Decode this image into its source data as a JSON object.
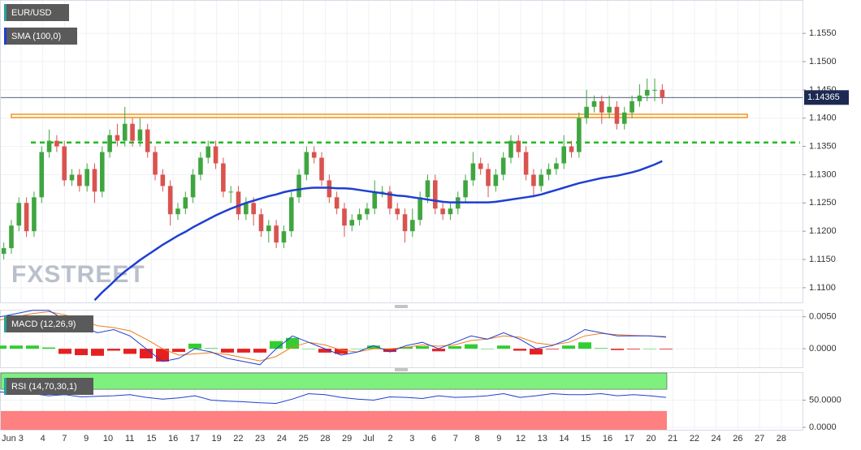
{
  "time_axis": [
    "Jun 3",
    "4",
    "7",
    "9",
    "10",
    "11",
    "15",
    "16",
    "17",
    "19",
    "22",
    "23",
    "24",
    "25",
    "28",
    "29",
    "Jul",
    "2",
    "3",
    "6",
    "7",
    "8",
    "9",
    "12",
    "13",
    "14",
    "15",
    "16",
    "17",
    "20",
    "21",
    "22",
    "24",
    "26",
    "27",
    "28"
  ],
  "chart_data": [
    {
      "type": "candlestick",
      "title": "EUR/USD",
      "watermark": "FXSTREET",
      "up_color": "#3fa63f",
      "down_color": "#d9534f",
      "open": [
        1.116,
        1.117,
        1.121,
        1.125,
        1.12,
        1.126,
        1.134,
        1.136,
        1.135,
        1.129,
        1.13,
        1.128,
        1.131,
        1.127,
        1.134,
        1.137,
        1.136,
        1.139,
        1.136,
        1.138,
        1.134,
        1.13,
        1.128,
        1.123,
        1.124,
        1.126,
        1.13,
        1.133,
        1.135,
        1.132,
        1.127,
        1.127,
        1.123,
        1.125,
        1.123,
        1.12,
        1.121,
        1.118,
        1.12,
        1.126,
        1.13,
        1.134,
        1.133,
        1.129,
        1.126,
        1.124,
        1.121,
        1.122,
        1.123,
        1.124,
        1.127,
        1.127,
        1.124,
        1.123,
        1.12,
        1.122,
        1.126,
        1.129,
        1.124,
        1.123,
        1.124,
        1.126,
        1.129,
        1.132,
        1.131,
        1.128,
        1.13,
        1.133,
        1.136,
        1.134,
        1.13,
        1.128,
        1.13,
        1.131,
        1.132,
        1.135,
        1.134,
        1.14,
        1.142,
        1.143,
        1.141,
        1.142,
        1.139,
        1.141,
        1.143,
        1.144,
        1.145,
        1.145
      ],
      "high": [
        1.118,
        1.122,
        1.126,
        1.126,
        1.127,
        1.135,
        1.138,
        1.137,
        1.136,
        1.131,
        1.131,
        1.132,
        1.132,
        1.135,
        1.138,
        1.139,
        1.142,
        1.14,
        1.14,
        1.139,
        1.135,
        1.131,
        1.129,
        1.125,
        1.127,
        1.131,
        1.134,
        1.136,
        1.136,
        1.133,
        1.128,
        1.128,
        1.126,
        1.126,
        1.124,
        1.122,
        1.122,
        1.121,
        1.127,
        1.131,
        1.135,
        1.135,
        1.134,
        1.13,
        1.127,
        1.125,
        1.123,
        1.124,
        1.125,
        1.129,
        1.128,
        1.128,
        1.125,
        1.124,
        1.124,
        1.127,
        1.13,
        1.13,
        1.125,
        1.125,
        1.127,
        1.13,
        1.134,
        1.133,
        1.132,
        1.131,
        1.134,
        1.137,
        1.137,
        1.135,
        1.131,
        1.131,
        1.132,
        1.133,
        1.137,
        1.136,
        1.141,
        1.145,
        1.144,
        1.144,
        1.144,
        1.143,
        1.142,
        1.144,
        1.146,
        1.147,
        1.147,
        1.146
      ],
      "low": [
        1.115,
        1.116,
        1.12,
        1.119,
        1.119,
        1.125,
        1.133,
        1.134,
        1.128,
        1.128,
        1.127,
        1.127,
        1.125,
        1.126,
        1.133,
        1.135,
        1.135,
        1.135,
        1.135,
        1.133,
        1.129,
        1.127,
        1.121,
        1.122,
        1.123,
        1.125,
        1.129,
        1.132,
        1.131,
        1.126,
        1.125,
        1.122,
        1.122,
        1.121,
        1.119,
        1.118,
        1.117,
        1.117,
        1.119,
        1.125,
        1.129,
        1.132,
        1.128,
        1.125,
        1.123,
        1.119,
        1.12,
        1.121,
        1.122,
        1.123,
        1.126,
        1.123,
        1.122,
        1.118,
        1.119,
        1.121,
        1.125,
        1.123,
        1.122,
        1.122,
        1.123,
        1.125,
        1.128,
        1.13,
        1.126,
        1.127,
        1.129,
        1.132,
        1.133,
        1.129,
        1.126,
        1.127,
        1.129,
        1.13,
        1.131,
        1.133,
        1.133,
        1.139,
        1.141,
        1.139,
        1.14,
        1.138,
        1.138,
        1.14,
        1.142,
        1.143,
        1.143,
        1.1425
      ],
      "close": [
        1.117,
        1.121,
        1.125,
        1.12,
        1.126,
        1.134,
        1.136,
        1.135,
        1.129,
        1.13,
        1.128,
        1.131,
        1.127,
        1.134,
        1.137,
        1.136,
        1.139,
        1.136,
        1.138,
        1.134,
        1.13,
        1.128,
        1.123,
        1.124,
        1.126,
        1.13,
        1.133,
        1.135,
        1.132,
        1.127,
        1.127,
        1.123,
        1.125,
        1.123,
        1.12,
        1.121,
        1.118,
        1.12,
        1.126,
        1.13,
        1.134,
        1.133,
        1.129,
        1.126,
        1.124,
        1.121,
        1.122,
        1.123,
        1.124,
        1.127,
        1.127,
        1.124,
        1.123,
        1.12,
        1.122,
        1.126,
        1.129,
        1.124,
        1.123,
        1.124,
        1.126,
        1.129,
        1.132,
        1.131,
        1.128,
        1.13,
        1.133,
        1.136,
        1.134,
        1.13,
        1.128,
        1.13,
        1.131,
        1.132,
        1.135,
        1.134,
        1.14,
        1.142,
        1.143,
        1.141,
        1.142,
        1.139,
        1.141,
        1.143,
        1.144,
        1.145,
        1.145,
        1.1437
      ],
      "series": [
        {
          "name": "SMA (100,0)",
          "color": "#1f3fd1",
          "values": [
            null,
            null,
            null,
            null,
            null,
            null,
            null,
            null,
            null,
            null,
            null,
            null,
            1.1078,
            1.1092,
            1.1104,
            1.1117,
            1.1129,
            1.1139,
            1.1149,
            1.1158,
            1.1167,
            1.1176,
            1.1184,
            1.1192,
            1.1199,
            1.1207,
            1.1214,
            1.1221,
            1.1228,
            1.1234,
            1.124,
            1.1245,
            1.125,
            1.1254,
            1.1258,
            1.1262,
            1.1265,
            1.1269,
            1.1272,
            1.1274,
            1.1276,
            1.1277,
            1.1277,
            1.1277,
            1.1276,
            1.1276,
            1.1275,
            1.1273,
            1.1271,
            1.1269,
            1.1267,
            1.1265,
            1.1263,
            1.1262,
            1.126,
            1.1258,
            1.1256,
            1.1254,
            1.1252,
            1.1251,
            1.1251,
            1.1251,
            1.1251,
            1.1251,
            1.1251,
            1.1252,
            1.1254,
            1.1256,
            1.1258,
            1.126,
            1.1262,
            1.1265,
            1.1269,
            1.1273,
            1.1277,
            1.1281,
            1.1285,
            1.1288,
            1.1291,
            1.1294,
            1.1296,
            1.1298,
            1.1301,
            1.1304,
            1.1308,
            1.1313,
            1.1318,
            1.1324
          ]
        }
      ],
      "levels": [
        {
          "value": 1.1404,
          "color": "#f7931a",
          "style": "solid"
        },
        {
          "value": 1.1357,
          "color": "#22bb22",
          "style": "dotted"
        }
      ],
      "last_price": 1.14365,
      "last_price_color": "#1c2a52",
      "ylim": [
        1.1074,
        1.1609
      ],
      "yticks": [
        {
          "value": 1.11,
          "label": "1.1100"
        },
        {
          "value": 1.115,
          "label": "1.1150"
        },
        {
          "value": 1.12,
          "label": "1.1200"
        },
        {
          "value": 1.125,
          "label": "1.1250"
        },
        {
          "value": 1.13,
          "label": "1.1300"
        },
        {
          "value": 1.135,
          "label": "1.1350"
        },
        {
          "value": 1.14,
          "label": "1.1400"
        },
        {
          "value": 1.145,
          "label": "1.1450"
        },
        {
          "value": 1.15,
          "label": "1.1500"
        },
        {
          "value": 1.155,
          "label": "1.1550"
        }
      ],
      "grid": true
    },
    {
      "type": "macd",
      "title": "MACD (12,26,9)",
      "macd": {
        "color": "#1f3fd1",
        "values": [
          0.005,
          0.0055,
          0.006,
          0.006,
          0.0045,
          0.0035,
          0.0025,
          0.003,
          0.002,
          0,
          -0.002,
          -0.0015,
          0,
          -0.0005,
          -0.0015,
          -0.002,
          -0.0025,
          0,
          0.002,
          0.001,
          0,
          -0.001,
          -0.0005,
          0.0005,
          -0.0005,
          0.0005,
          0.001,
          0,
          0.001,
          0.002,
          0.0015,
          0.0025,
          0.0015,
          0,
          0.0005,
          0.0015,
          0.003,
          0.0025,
          0.002,
          0.002,
          0.002,
          0.0018
        ]
      },
      "signal": {
        "color": "#f07d1a",
        "values": [
          0.0045,
          0.005,
          0.0055,
          0.0058,
          0.0053,
          0.0045,
          0.0036,
          0.0033,
          0.0028,
          0.0015,
          0,
          -0.001,
          -0.0008,
          -0.0006,
          -0.0009,
          -0.0014,
          -0.0019,
          -0.0012,
          0.0003,
          0.001,
          0.0006,
          -0.0002,
          -0.0005,
          0,
          0,
          0.0002,
          0.0006,
          0.0004,
          0.0006,
          0.0013,
          0.0015,
          0.002,
          0.0018,
          0.0009,
          0.0006,
          0.001,
          0.002,
          0.0024,
          0.0022,
          0.0021,
          0.002,
          0.0019
        ]
      },
      "histogram": {
        "up_color": "#32cd32",
        "down_color": "#e52020",
        "values": [
          0.0005,
          0.0005,
          0.0005,
          0.0002,
          -0.0008,
          -0.001,
          -0.0011,
          -0.0003,
          -0.0008,
          -0.0015,
          -0.002,
          -0.0005,
          0.0008,
          0.0001,
          -0.0006,
          -0.0006,
          -0.0006,
          0.0012,
          0.0017,
          0,
          -0.0006,
          -0.0008,
          0,
          0.0005,
          -0.0005,
          0.0003,
          0.0004,
          -0.0004,
          0.0004,
          0.0007,
          0,
          0.0005,
          -0.0003,
          -0.0009,
          -0.0001,
          0.0005,
          0.001,
          0.0001,
          -0.0002,
          -0.0001,
          0,
          -0.0001
        ]
      },
      "ylim": [
        -0.0029,
        0.0061
      ],
      "yticks": [
        {
          "value": 0,
          "label": "0.0000"
        },
        {
          "value": 0.005,
          "label": "0.0050"
        }
      ],
      "grid": true
    },
    {
      "type": "rsi",
      "title": "RSI (14,70,30,1)",
      "color": "#1f3fd1",
      "values": [
        65,
        63,
        62,
        58,
        60,
        56,
        57,
        58,
        60,
        55,
        52,
        54,
        58,
        50,
        48,
        47,
        45,
        44,
        52,
        62,
        60,
        55,
        52,
        50,
        56,
        55,
        53,
        58,
        55,
        56,
        58,
        62,
        55,
        58,
        62,
        60,
        60,
        62,
        58,
        60,
        58,
        55
      ],
      "upper": 70,
      "lower": 30,
      "upper_color": "#7ef07e",
      "lower_color": "#ff8080",
      "ylim": [
        -4.5,
        101.5
      ],
      "yticks": [
        {
          "value": 0,
          "label": "0.0000"
        },
        {
          "value": 50,
          "label": "50.0000"
        }
      ],
      "grid": true
    }
  ]
}
